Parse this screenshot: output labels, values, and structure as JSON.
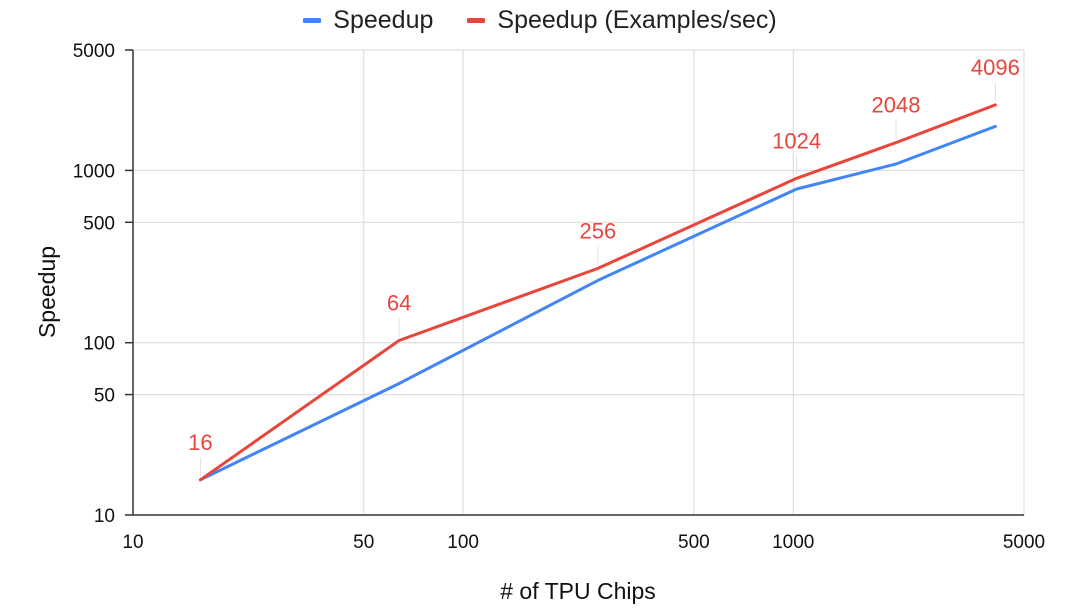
{
  "chart_data": {
    "type": "line",
    "xlabel": "# of TPU Chips",
    "ylabel": "Speedup",
    "x_scale": "log",
    "y_scale": "log",
    "xlim": [
      10,
      5000
    ],
    "ylim": [
      10,
      5000
    ],
    "x_ticks": [
      10,
      50,
      100,
      500,
      1000,
      5000
    ],
    "x_tick_labels": [
      "10",
      "50",
      "100",
      "500",
      "1000",
      "5000"
    ],
    "y_ticks": [
      10,
      50,
      100,
      500,
      1000,
      5000
    ],
    "y_tick_labels": [
      "10",
      "50",
      "100",
      "500",
      "1000",
      "5000"
    ],
    "grid": true,
    "legend_position": "top",
    "series": [
      {
        "name": "Speedup",
        "color": "#4285f4",
        "x": [
          16,
          64,
          256,
          1024,
          2048,
          4096
        ],
        "y": [
          16,
          58,
          230,
          780,
          1090,
          1800
        ]
      },
      {
        "name": "Speedup (Examples/sec)",
        "color": "#e8453c",
        "x": [
          16,
          64,
          256,
          1024,
          2048,
          4096
        ],
        "y": [
          16,
          103,
          270,
          900,
          1450,
          2400
        ],
        "data_labels": [
          "16",
          "64",
          "256",
          "1024",
          "2048",
          "4096"
        ]
      }
    ]
  }
}
